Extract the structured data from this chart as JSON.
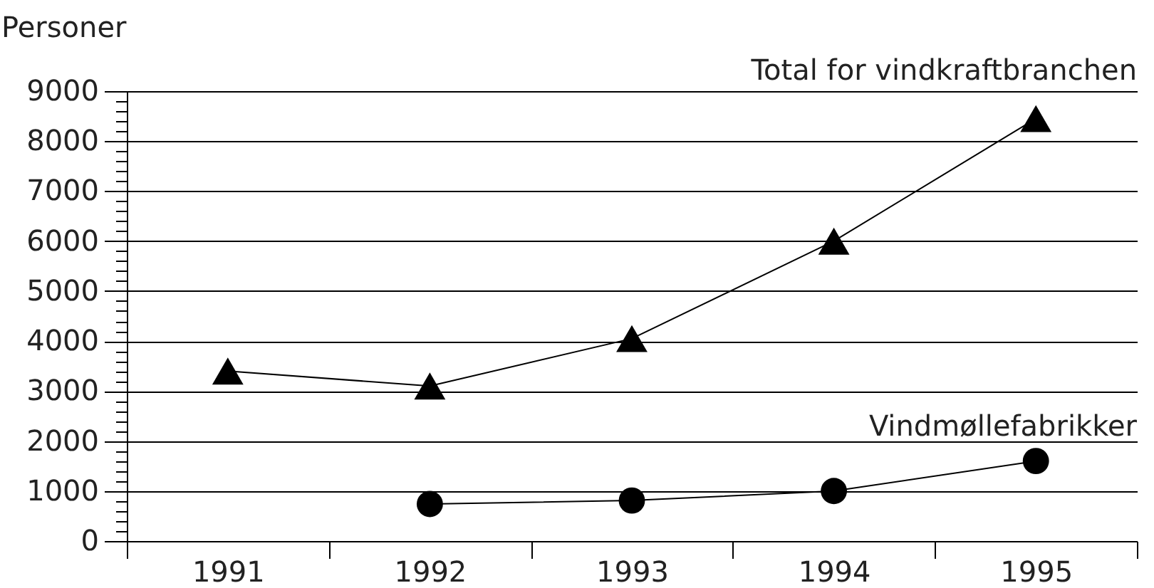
{
  "chart_data": {
    "type": "line",
    "ylabel": "Personer",
    "categories": [
      "1991",
      "1992",
      "1993",
      "1994",
      "1995"
    ],
    "series": [
      {
        "name": "Total for vindkraftbranchen",
        "color": "#000000",
        "marker": "triangle",
        "values": [
          3400,
          3100,
          4050,
          6000,
          8450
        ]
      },
      {
        "name": "Vindmøllefabrikker",
        "color": "#000000",
        "marker": "circle",
        "values": [
          null,
          740,
          810,
          1000,
          1600
        ]
      }
    ],
    "ylim": [
      0,
      9000
    ],
    "yticks": [
      0,
      {
        "value": 200,
        "label": null
      },
      {
        "value": 400,
        "label": null
      },
      {
        "value": 600,
        "label": null
      },
      {
        "value": 800,
        "label": null
      },
      1000,
      {
        "value": 1200,
        "label": null
      },
      {
        "value": 1400,
        "label": null
      },
      {
        "value": 1600,
        "label": null
      },
      {
        "value": 1800,
        "label": null
      },
      2000,
      {
        "value": 2200,
        "label": null
      },
      {
        "value": 2400,
        "label": null
      },
      {
        "value": 2600,
        "label": null
      },
      {
        "value": 2800,
        "label": null
      },
      3000,
      {
        "value": 3200,
        "label": null
      },
      {
        "value": 3400,
        "label": null
      },
      {
        "value": 3600,
        "label": null
      },
      {
        "value": 3800,
        "label": null
      },
      4000,
      {
        "value": 4200,
        "label": null
      },
      {
        "value": 4400,
        "label": null
      },
      {
        "value": 4600,
        "label": null
      },
      {
        "value": 4800,
        "label": null
      },
      5000,
      {
        "value": 5200,
        "label": null
      },
      {
        "value": 5400,
        "label": null
      },
      {
        "value": 5600,
        "label": null
      },
      {
        "value": 5800,
        "label": null
      },
      6000,
      {
        "value": 6200,
        "label": null
      },
      {
        "value": 6400,
        "label": null
      },
      {
        "value": 6600,
        "label": null
      },
      {
        "value": 6800,
        "label": null
      },
      7000,
      {
        "value": 7200,
        "label": null
      },
      {
        "value": 7400,
        "label": null
      },
      {
        "value": 7600,
        "label": null
      },
      {
        "value": 7800,
        "label": null
      },
      8000,
      {
        "value": 8200,
        "label": null
      },
      {
        "value": 8400,
        "label": null
      },
      {
        "value": 8600,
        "label": null
      },
      {
        "value": 8800,
        "label": null
      },
      9000
    ],
    "grid": "y"
  }
}
